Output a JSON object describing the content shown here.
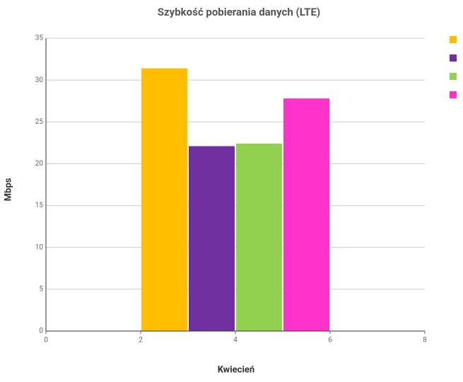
{
  "chart_data": {
    "type": "histogram",
    "title": "Szybkość pobierania danych (LTE)",
    "x_label": "Kwiecień",
    "y_label": "Mbps",
    "bins": [
      2,
      3,
      4,
      5,
      6
    ],
    "values": [
      31.4,
      22.1,
      22.4,
      27.8
    ],
    "colors": [
      "#ffbf00",
      "#7030a0",
      "#92d050",
      "#ff33cc"
    ],
    "xlim": [
      0,
      8
    ],
    "xticks": [
      0,
      2,
      4,
      6,
      8
    ],
    "ylim": [
      0,
      35
    ],
    "yticks": [
      0,
      5,
      10,
      15,
      20,
      25,
      30,
      35
    ],
    "grid": true
  }
}
